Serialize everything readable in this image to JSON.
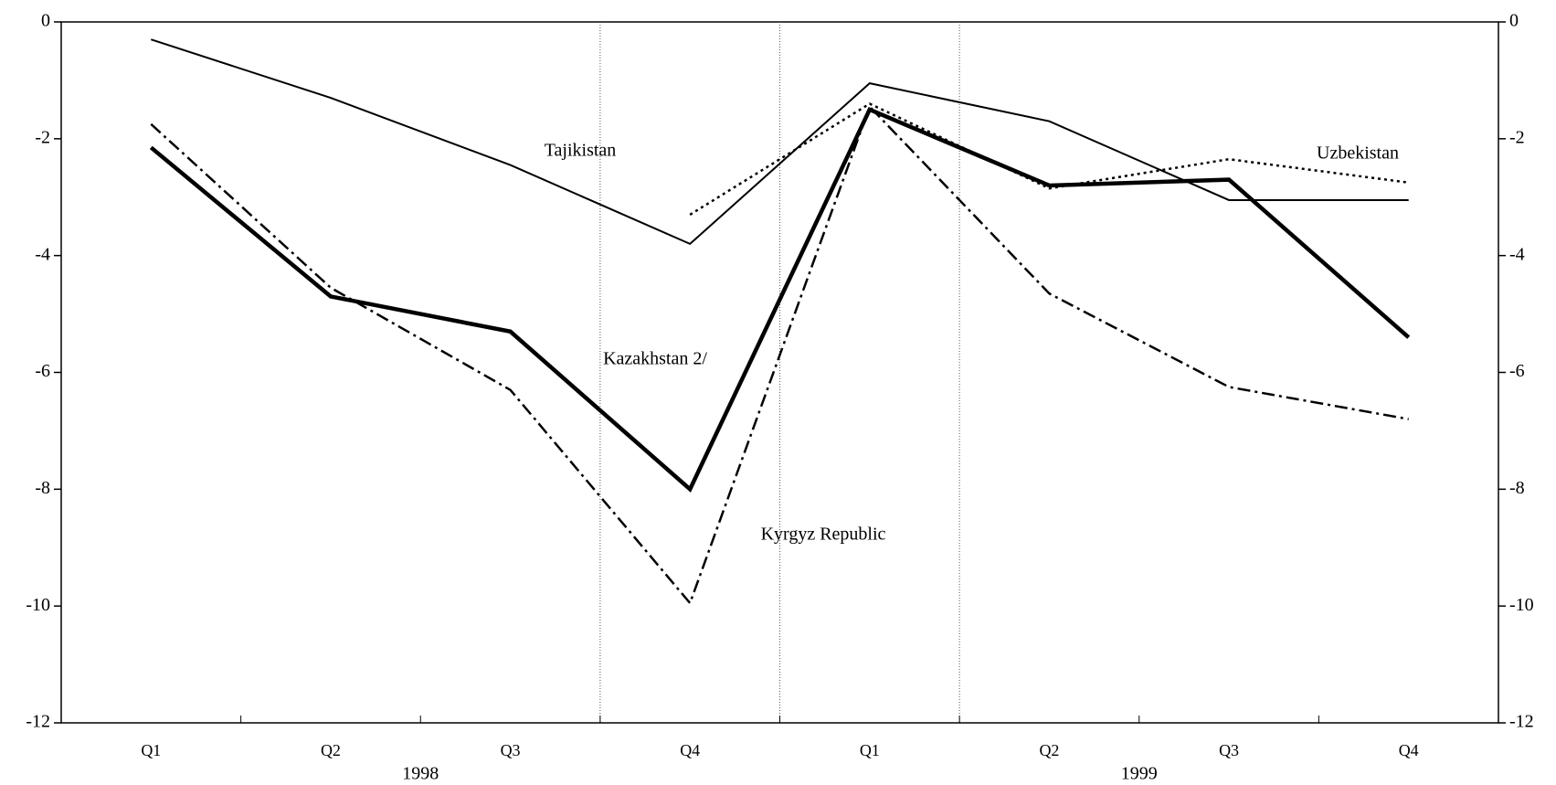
{
  "chart_data": {
    "type": "line",
    "categories": [
      "Q1",
      "Q2",
      "Q3",
      "Q4",
      "Q1",
      "Q2",
      "Q3",
      "Q4"
    ],
    "years": [
      "1998",
      "1999"
    ],
    "ylim": [
      -12,
      0
    ],
    "yticks": [
      0,
      -2,
      -4,
      -6,
      -8,
      -10,
      -12
    ],
    "series": [
      {
        "name": "Tajikistan",
        "color": "#000000",
        "style": "solid",
        "width": 2,
        "values": [
          -0.3,
          -1.3,
          -2.45,
          -3.8,
          -1.05,
          -1.7,
          -3.05,
          -3.05
        ]
      },
      {
        "name": "Uzbekistan",
        "color": "#000000",
        "style": "dotted",
        "width": 2.5,
        "values": [
          null,
          null,
          null,
          -3.3,
          -1.4,
          -2.85,
          -2.35,
          -2.75
        ]
      },
      {
        "name": "Kazakhstan 2/",
        "color": "#000000",
        "style": "solid",
        "width": 4.5,
        "values": [
          -2.15,
          -4.7,
          -5.3,
          -8.0,
          -1.5,
          -2.8,
          -2.7,
          -5.4
        ]
      },
      {
        "name": "Kyrgyz Republic",
        "color": "#000000",
        "style": "dashdot",
        "width": 2.5,
        "values": [
          -1.75,
          -4.55,
          -6.3,
          -9.95,
          -1.45,
          -4.65,
          -6.25,
          -6.8
        ]
      }
    ]
  }
}
